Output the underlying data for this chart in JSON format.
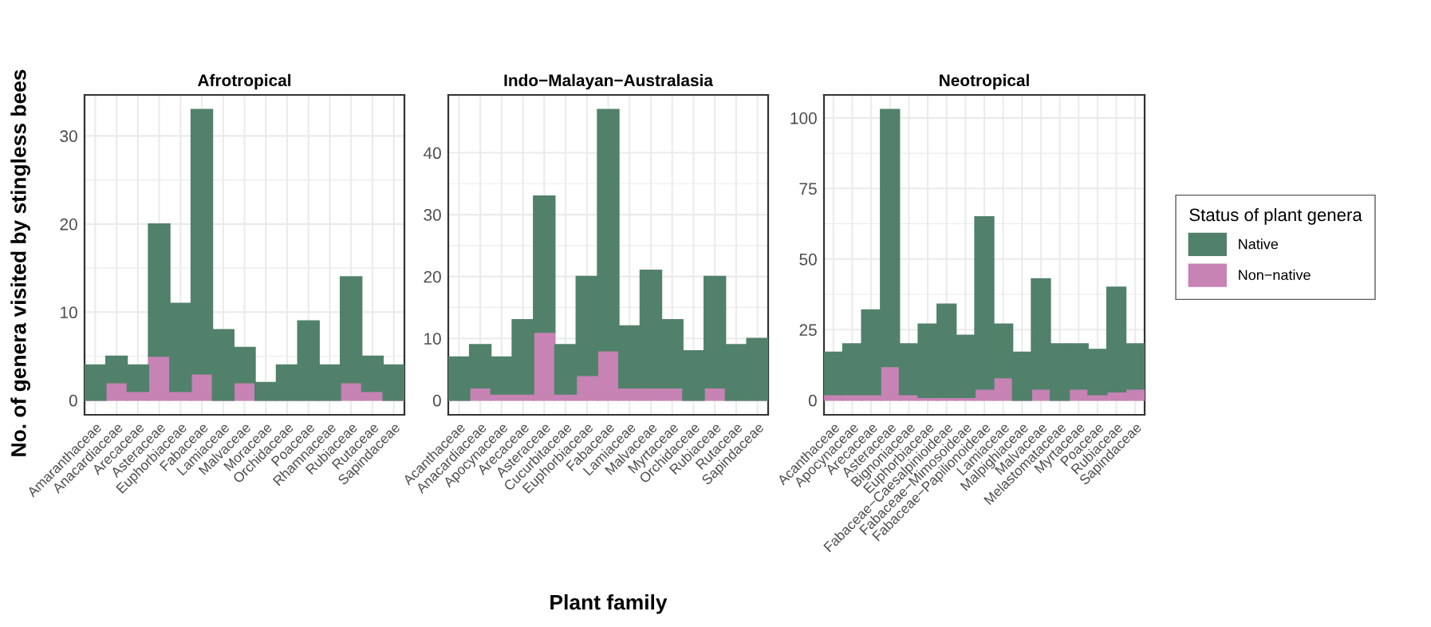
{
  "chart_data": [
    {
      "type": "bar",
      "title": "Afrotropical",
      "ylabel": "No. of genera visited by stingless bees",
      "stacked": true,
      "categories": [
        "Amaranthaceae",
        "Anacardiaceae",
        "Arecaceae",
        "Asteraceae",
        "Euphorbiaceae",
        "Fabaceae",
        "Lamiaceae",
        "Malvaceae",
        "Moraceae",
        "Orchidaceae",
        "Poaceae",
        "Rhamnaceae",
        "Rubiaceae",
        "Rutaceae",
        "Sapindaceae"
      ],
      "series": [
        {
          "color": "#c683b4",
          "values": [
            0,
            2,
            1,
            5,
            1,
            3,
            0,
            2,
            0,
            0,
            0,
            0,
            2,
            1,
            0
          ]
        },
        {
          "color": "#52816b",
          "values": [
            4,
            3,
            3,
            15,
            10,
            30,
            8,
            4,
            2,
            4,
            9,
            4,
            12,
            4,
            4
          ]
        }
      ],
      "ylim": [
        -1.65,
        34.65
      ],
      "yticks": [
        0,
        10,
        20,
        30
      ],
      "grid": true
    },
    {
      "type": "bar",
      "title": "Indo−Malayan−Australasia",
      "xlabel": "Plant family",
      "stacked": true,
      "categories": [
        "Acanthaceae",
        "Anacardiaceae",
        "Apocynaceae",
        "Arecaceae",
        "Asteraceae",
        "Cucurbitaceae",
        "Euphorbiaceae",
        "Fabaceae",
        "Lamiaceae",
        "Malvaceae",
        "Myrtaceae",
        "Orchidaceae",
        "Rubiaceae",
        "Rutaceae",
        "Sapindaceae"
      ],
      "series": [
        {
          "color": "#c683b4",
          "values": [
            0,
            2,
            1,
            1,
            11,
            1,
            4,
            8,
            2,
            2,
            2,
            0,
            2,
            0,
            0
          ]
        },
        {
          "color": "#52816b",
          "values": [
            7,
            7,
            6,
            12,
            22,
            8,
            16,
            39,
            10,
            19,
            11,
            8,
            18,
            9,
            10
          ]
        }
      ],
      "ylim": [
        -2.35,
        49.35
      ],
      "yticks": [
        0,
        10,
        20,
        30,
        40
      ],
      "grid": true
    },
    {
      "type": "bar",
      "title": "Neotropical",
      "legend": "right",
      "legend_title": "Status of plant genera",
      "stacked": true,
      "categories": [
        "Acanthaceae",
        "Apocynaceae",
        "Arecaceae",
        "Asteraceae",
        "Bignoniaceae",
        "Euphorbiaceae",
        "Fabaceae−Caesalpinioideae",
        "Fabaceae−Mimosoideae",
        "Fabaceae−Papilionoideae",
        "Lamiaceae",
        "Malpighiaceae",
        "Malvaceae",
        "Melastomataceae",
        "Myrtaceae",
        "Poaceae",
        "Rubiaceae",
        "Sapindaceae"
      ],
      "series": [
        {
          "name": "Non−native",
          "color": "#c683b4",
          "values": [
            2,
            2,
            2,
            12,
            2,
            1,
            1,
            1,
            4,
            8,
            0,
            4,
            0,
            4,
            2,
            3,
            4
          ]
        },
        {
          "name": "Native",
          "color": "#52816b",
          "values": [
            15,
            18,
            30,
            91,
            18,
            26,
            33,
            22,
            61,
            19,
            17,
            39,
            20,
            16,
            16,
            37,
            16
          ]
        }
      ],
      "ylim": [
        -5.15,
        108.15
      ],
      "yticks": [
        0,
        25,
        50,
        75,
        100
      ],
      "grid": true
    }
  ]
}
